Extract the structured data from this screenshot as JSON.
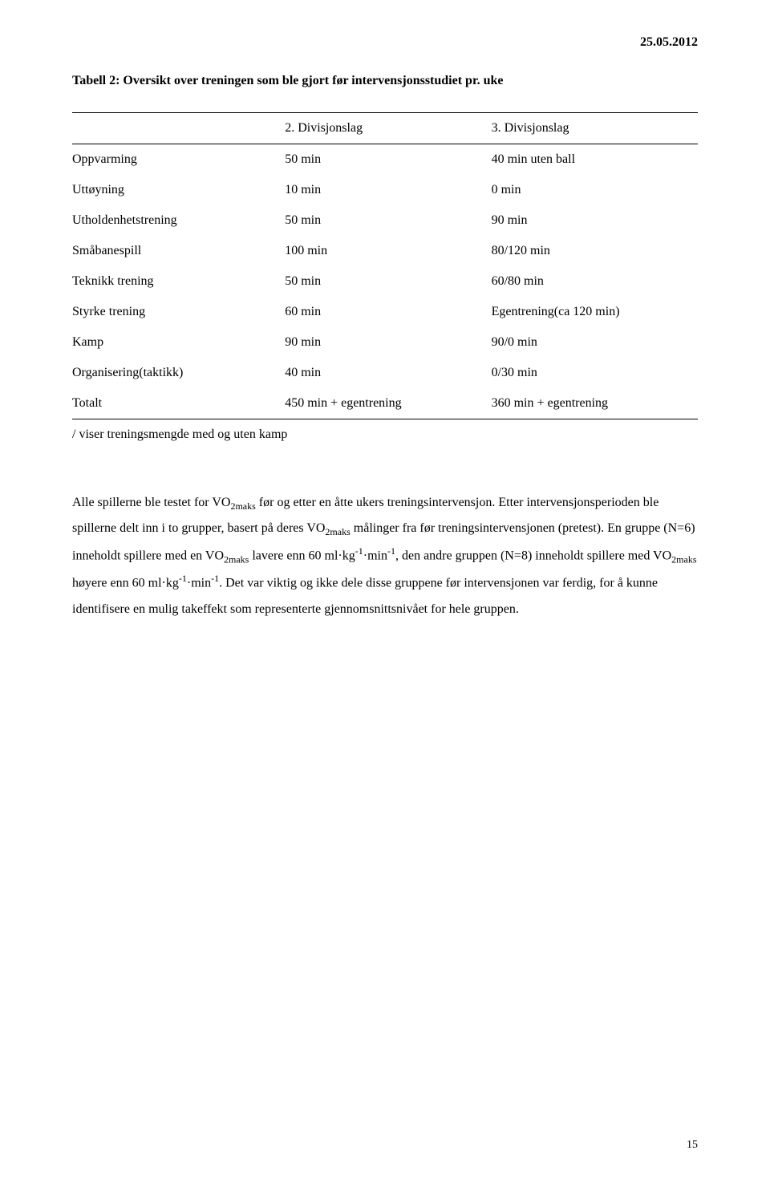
{
  "header": {
    "date": "25.05.2012"
  },
  "table": {
    "title": "Tabell 2: Oversikt over treningen som ble gjort før intervensjonsstudiet pr. uke",
    "columns": [
      "",
      "2. Divisjonslag",
      "3. Divisjonslag"
    ],
    "rows": [
      [
        "Oppvarming",
        "50 min",
        "40 min uten ball"
      ],
      [
        "Uttøyning",
        "10 min",
        "0 min"
      ],
      [
        "Utholdenhetstrening",
        "50 min",
        "90 min"
      ],
      [
        "Småbanespill",
        "100 min",
        "80/120 min"
      ],
      [
        "Teknikk trening",
        "50 min",
        "60/80 min"
      ],
      [
        "Styrke trening",
        "60 min",
        "Egentrening(ca 120 min)"
      ],
      [
        "Kamp",
        "90  min",
        "90/0 min"
      ],
      [
        "Organisering(taktikk)",
        "40 min",
        "0/30 min"
      ],
      [
        "Totalt",
        "450 min + egentrening",
        "360 min + egentrening"
      ]
    ],
    "footnote": "/ viser treningsmengde med og uten kamp"
  },
  "paragraph": {
    "p1a": "Alle spillerne ble testet for VO",
    "p1b": " før og etter en åtte ukers treningsintervensjon. Etter intervensjonsperioden ble spillerne delt inn i to grupper, basert på deres VO",
    "p1c": " målinger fra før treningsintervensjonen (pretest). En gruppe (N=6) inneholdt spillere med en VO",
    "p1d": " lavere enn 60 ml·kg",
    "p1e": "·min",
    "p1f": ", den andre gruppen (N=8) inneholdt spillere med VO",
    "p1g": " høyere enn 60 ml·kg",
    "p1h": "·min",
    "p1i": ". Det var viktig og ikke dele disse gruppene før intervensjonen var ferdig, for å kunne identifisere en mulig takeffekt som representerte gjennomsnittsnivået for hele gruppen.",
    "sub_2maks": "2maks",
    "sup_minus1": "-1"
  },
  "page_num": "15",
  "style": {
    "background_color": "#ffffff",
    "text_color": "#000000",
    "font_family": "Times New Roman",
    "body_fontsize": 16,
    "sub_fontsize": 12,
    "line_height": 2,
    "border_color": "#000000"
  }
}
